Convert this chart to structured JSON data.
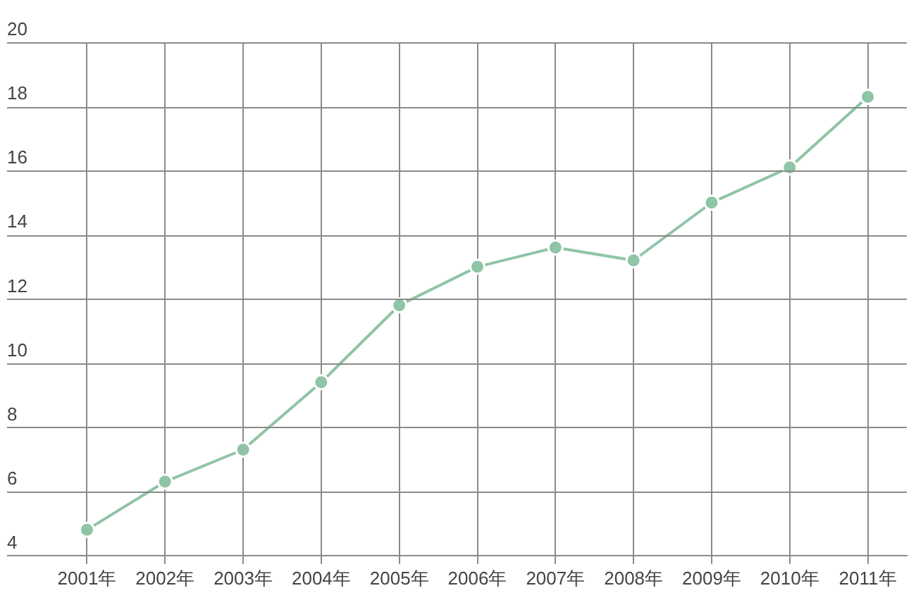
{
  "chart_data": {
    "type": "line",
    "categories": [
      "2001年",
      "2002年",
      "2003年",
      "2004年",
      "2005年",
      "2006年",
      "2007年",
      "2008年",
      "2009年",
      "2010年",
      "2011年"
    ],
    "series": [
      {
        "color": "#8fc4a6",
        "values": [
          4.8,
          6.3,
          7.3,
          9.4,
          11.8,
          13.0,
          13.6,
          13.2,
          15.0,
          16.1,
          18.3
        ]
      }
    ],
    "ylim": [
      4,
      20
    ],
    "yticks": [
      4,
      6,
      8,
      10,
      12,
      14,
      16,
      18,
      20
    ],
    "grid": true,
    "marker": "circle",
    "legend": false
  }
}
